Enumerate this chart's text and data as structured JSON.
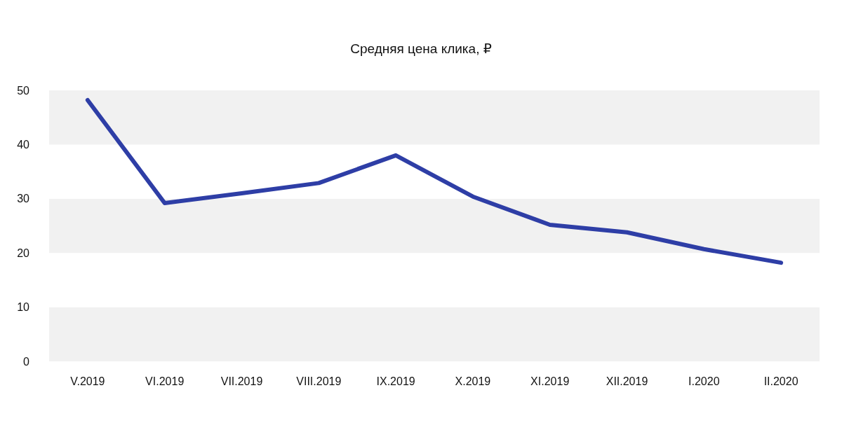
{
  "chart_data": {
    "type": "line",
    "title": "Средняя цена клика, ₽",
    "categories": [
      "V.2019",
      "VI.2019",
      "VII.2019",
      "VIII.2019",
      "IX.2019",
      "X.2019",
      "XI.2019",
      "XII.2019",
      "I.2020",
      "II.2020"
    ],
    "series": [
      {
        "color": "#2e3ea6",
        "values": [
          48.2,
          29.2,
          31.0,
          32.9,
          38.0,
          30.4,
          25.2,
          23.8,
          20.7,
          18.2
        ]
      }
    ],
    "ylim": [
      0,
      50
    ],
    "yticks": [
      0,
      10,
      20,
      30,
      40,
      50
    ],
    "grid": false,
    "marker": "none",
    "line_style": "solid"
  }
}
